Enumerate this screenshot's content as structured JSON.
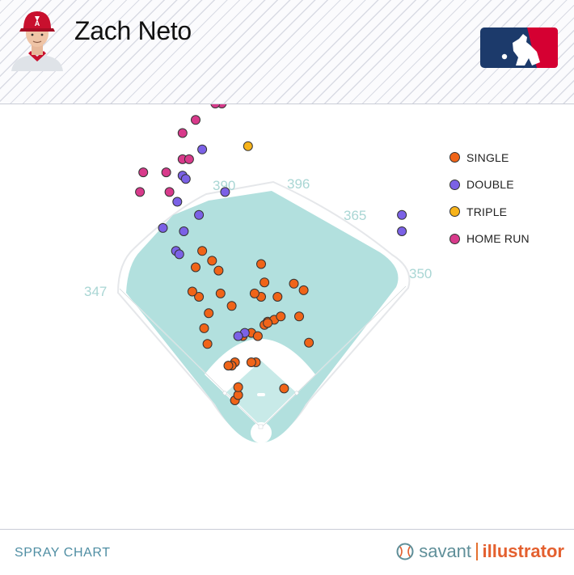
{
  "header": {
    "player_name": "Zach Neto"
  },
  "footer": {
    "title": "SPRAY CHART",
    "brand_savant": "savant",
    "brand_illustrator": "illustrator"
  },
  "legend": [
    {
      "label": "SINGLE",
      "color": "#f06418"
    },
    {
      "label": "DOUBLE",
      "color": "#7b61e6"
    },
    {
      "label": "TRIPLE",
      "color": "#f7b31a"
    },
    {
      "label": "HOME RUN",
      "color": "#d83a8b"
    }
  ],
  "colors": {
    "field_green": "#b2e0de",
    "infield_dirt": "#ffffff",
    "grass_light": "#c8eae8",
    "distance_labels": "#a9d6d4"
  },
  "fence_distances": [
    "347",
    "390",
    "396",
    "365",
    "350"
  ],
  "chart_data": {
    "type": "scatter",
    "title": "",
    "xlabel": "",
    "ylabel": "",
    "series": [
      {
        "name": "SINGLE",
        "points": [
          [
            -90,
            270
          ],
          [
            -100,
            245
          ],
          [
            -75,
            255
          ],
          [
            -62,
            205
          ],
          [
            -95,
            200
          ],
          [
            -80,
            175
          ],
          [
            -65,
            240
          ],
          [
            -45,
            186
          ],
          [
            -105,
            208
          ],
          [
            -87,
            152
          ],
          [
            -82,
            128
          ],
          [
            0,
            250
          ],
          [
            0,
            200
          ],
          [
            -10,
            205
          ],
          [
            -8,
            100
          ],
          [
            -15,
            145
          ],
          [
            -28,
            140
          ],
          [
            -40,
            100
          ],
          [
            -40,
            42
          ],
          [
            -45,
            95
          ],
          [
            -35,
            50
          ],
          [
            -50,
            95
          ],
          [
            -35,
            62
          ],
          [
            10,
            162
          ],
          [
            5,
            157
          ],
          [
            -15,
            100
          ],
          [
            20,
            165
          ],
          [
            30,
            170
          ],
          [
            58,
            170
          ],
          [
            65,
            210
          ],
          [
            -5,
            140
          ],
          [
            5,
            222
          ],
          [
            50,
            220
          ],
          [
            35,
            60
          ],
          [
            25,
            200
          ],
          [
            10,
            160
          ],
          [
            73,
            130
          ]
        ]
      },
      {
        "name": "DOUBLE",
        "points": [
          [
            -128,
            345
          ],
          [
            -130,
            270
          ],
          [
            -125,
            265
          ],
          [
            -118,
            300
          ],
          [
            -150,
            305
          ],
          [
            -95,
            325
          ],
          [
            -120,
            385
          ],
          [
            -115,
            380
          ],
          [
            -55,
            360
          ],
          [
            -25,
            145
          ],
          [
            -90,
            425
          ],
          [
            215,
            325
          ],
          [
            215,
            300
          ],
          [
            -35,
            140
          ]
        ]
      },
      {
        "name": "TRIPLE",
        "points": [
          [
            -20,
            430
          ]
        ]
      },
      {
        "name": "HOME RUN",
        "points": [
          [
            -180,
            390
          ],
          [
            -185,
            360
          ],
          [
            -140,
            360
          ],
          [
            -145,
            390
          ],
          [
            -120,
            450
          ],
          [
            -100,
            470
          ],
          [
            -120,
            410
          ],
          [
            -110,
            410
          ],
          [
            -60,
            495
          ],
          [
            -70,
            495
          ],
          [
            -30,
            505
          ]
        ]
      }
    ],
    "units": "feet from home plate (x toward first-base side, y toward center field)"
  }
}
